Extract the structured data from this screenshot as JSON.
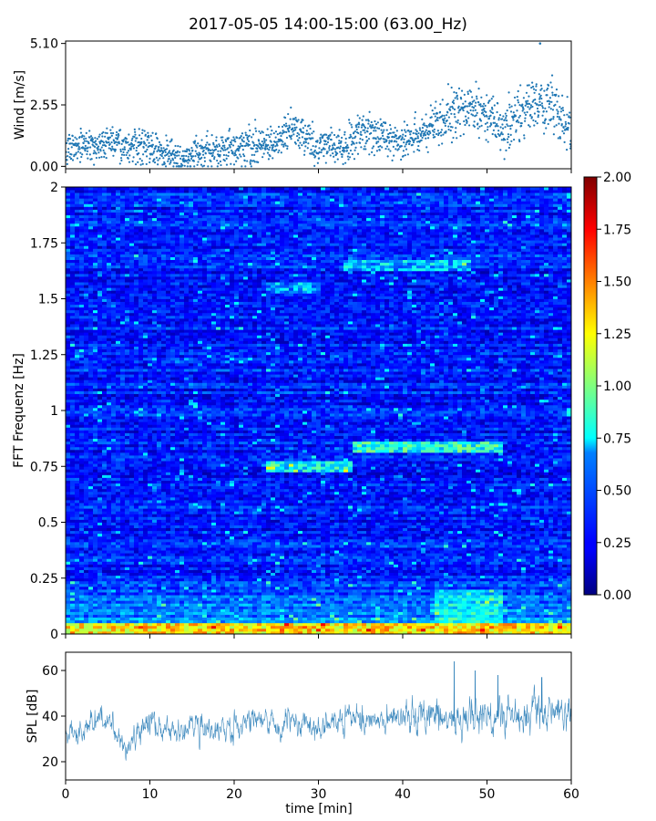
{
  "chart_data": {
    "title": "2017-05-05 14:00-15:00 (63.00_Hz)",
    "xlabel": "time [min]",
    "xlim": [
      0,
      60
    ],
    "xticks": [
      "0",
      "10",
      "20",
      "30",
      "40",
      "50",
      "60"
    ],
    "panels": [
      {
        "type": "scatter",
        "name": "wind",
        "ylabel": "Wind [m/s]",
        "ylim": [
          -0.1,
          5.2
        ],
        "yticks": [
          "0.00",
          "2.55",
          "5.10"
        ],
        "ytick_values": [
          0.0,
          2.55,
          5.1
        ],
        "series_color": "#1f77b4",
        "profile_minutes": [
          0,
          5,
          10,
          14,
          16,
          20,
          25,
          27,
          30,
          33,
          36,
          40,
          42,
          44,
          46,
          48,
          50,
          52,
          54,
          56,
          58,
          60
        ],
        "profile_means": [
          0.8,
          0.9,
          0.8,
          0.3,
          0.6,
          0.8,
          0.9,
          1.6,
          0.8,
          0.9,
          1.5,
          1.0,
          1.3,
          1.9,
          2.2,
          2.5,
          2.2,
          1.6,
          2.2,
          2.6,
          2.4,
          1.5
        ],
        "max_marker": {
          "minute": 56.3,
          "value": 5.1
        }
      },
      {
        "type": "heatmap",
        "name": "spectrogram",
        "ylabel": "FFT Frequenz [Hz]",
        "ylim": [
          0,
          2
        ],
        "yticks": [
          "0",
          "0.25",
          "0.5",
          "0.75",
          "1",
          "1.25",
          "1.5",
          "1.75",
          "2"
        ],
        "ytick_values": [
          0,
          0.25,
          0.5,
          0.75,
          1,
          1.25,
          1.5,
          1.75,
          2
        ],
        "colormap": "jet",
        "vmin": 0,
        "vmax": 2,
        "colorbar_ticks": [
          "0.00",
          "0.25",
          "0.50",
          "0.75",
          "1.00",
          "1.25",
          "1.50",
          "1.75",
          "2.00"
        ],
        "colorbar_tick_values": [
          0,
          0.25,
          0.5,
          0.75,
          1,
          1.25,
          1.5,
          1.75,
          2
        ],
        "background_level": 0.3,
        "features": [
          {
            "name": "low-frequency band",
            "freq": [
              0.0,
              0.05
            ],
            "time": [
              0,
              60
            ],
            "level": 1.3
          },
          {
            "name": "line near 0.75 Hz",
            "freq": [
              0.73,
              0.78
            ],
            "time": [
              24,
              34
            ],
            "level": 0.75
          },
          {
            "name": "line near 0.84 Hz",
            "freq": [
              0.81,
              0.86
            ],
            "time": [
              34,
              52
            ],
            "level": 0.8
          },
          {
            "name": "line near 1.65 Hz",
            "freq": [
              1.62,
              1.68
            ],
            "time": [
              33,
              48
            ],
            "level": 0.6
          },
          {
            "name": "line near 1.55 Hz",
            "freq": [
              1.53,
              1.58
            ],
            "time": [
              24,
              30
            ],
            "level": 0.55
          }
        ]
      },
      {
        "type": "line",
        "name": "spl",
        "ylabel": "SPL [dB]",
        "ylim": [
          12,
          68
        ],
        "yticks": [
          "20",
          "40",
          "60"
        ],
        "ytick_values": [
          20,
          40,
          60
        ],
        "series_color": "#1f77b4",
        "profile_minutes": [
          0,
          2,
          4,
          6,
          7,
          9,
          10,
          12,
          15,
          18,
          20,
          22,
          25,
          28,
          30,
          32,
          34,
          36,
          40,
          42,
          44,
          46,
          48,
          50,
          52,
          54,
          56,
          58,
          60
        ],
        "profile_means": [
          34,
          32,
          40,
          33,
          28,
          34,
          38,
          34,
          35,
          33,
          37,
          38,
          36,
          37,
          35,
          38,
          39,
          38,
          39,
          38,
          40,
          39,
          41,
          40,
          40,
          39,
          42,
          40,
          41
        ],
        "peak_minutes": [
          46.1,
          48.6,
          51.3,
          56.5
        ],
        "peak_values": [
          64,
          60,
          58,
          57
        ]
      }
    ]
  }
}
